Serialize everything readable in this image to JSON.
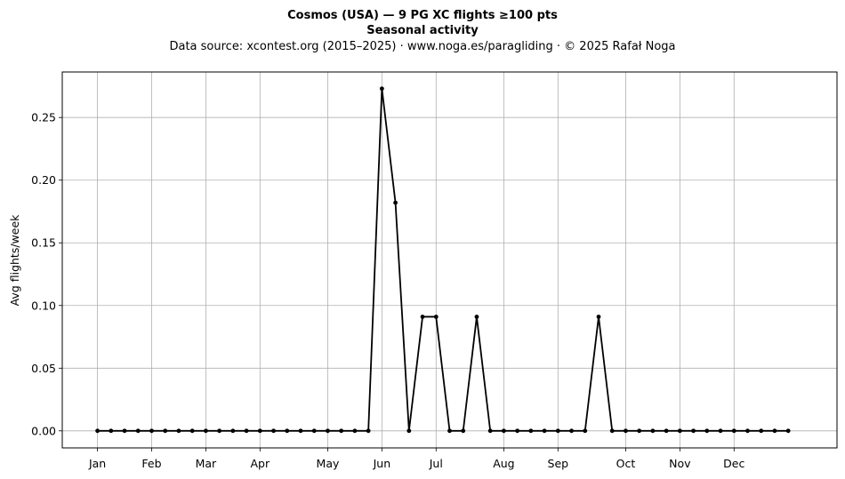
{
  "chart_data": {
    "type": "line",
    "title": "Cosmos (USA)  —  9 PG XC flights ≥100 pts",
    "subtitle": "Seasonal activity",
    "source": "Data source: xcontest.org (2015–2025)  ·  www.noga.es/paragliding  ·  © 2025 Rafał Noga",
    "xlabel": "",
    "ylabel": "Avg flights/week",
    "x_ticks": [
      {
        "label": "Jan",
        "week": 1
      },
      {
        "label": "Feb",
        "week": 5
      },
      {
        "label": "Mar",
        "week": 9
      },
      {
        "label": "Apr",
        "week": 13
      },
      {
        "label": "May",
        "week": 18
      },
      {
        "label": "Jun",
        "week": 22
      },
      {
        "label": "Jul",
        "week": 26
      },
      {
        "label": "Aug",
        "week": 31
      },
      {
        "label": "Sep",
        "week": 35
      },
      {
        "label": "Oct",
        "week": 40
      },
      {
        "label": "Nov",
        "week": 44
      },
      {
        "label": "Dec",
        "week": 48
      }
    ],
    "xlim": [
      -1.6,
      55.6
    ],
    "y_ticks": [
      0.0,
      0.05,
      0.1,
      0.15,
      0.2,
      0.25
    ],
    "y_tick_labels": [
      "0.00",
      "0.05",
      "0.10",
      "0.15",
      "0.20",
      "0.25"
    ],
    "ylim": [
      -0.0136,
      0.2863
    ],
    "grid": true,
    "line_color": "#000000",
    "grid_color": "#b0b0b0",
    "x": [
      1,
      2,
      3,
      4,
      5,
      6,
      7,
      8,
      9,
      10,
      11,
      12,
      13,
      14,
      15,
      16,
      17,
      18,
      19,
      20,
      21,
      22,
      23,
      24,
      25,
      26,
      27,
      28,
      29,
      30,
      31,
      32,
      33,
      34,
      35,
      36,
      37,
      38,
      39,
      40,
      41,
      42,
      43,
      44,
      45,
      46,
      47,
      48,
      49,
      50,
      51,
      52
    ],
    "series": [
      {
        "values": [
          0,
          0,
          0,
          0,
          0,
          0,
          0,
          0,
          0,
          0,
          0,
          0,
          0,
          0,
          0,
          0,
          0,
          0,
          0,
          0,
          0,
          0.273,
          0.182,
          0,
          0.091,
          0.091,
          0,
          0,
          0.091,
          0,
          0,
          0,
          0,
          0,
          0,
          0,
          0,
          0.091,
          0,
          0,
          0,
          0,
          0,
          0,
          0,
          0,
          0,
          0,
          0,
          0,
          0,
          0
        ]
      }
    ]
  }
}
